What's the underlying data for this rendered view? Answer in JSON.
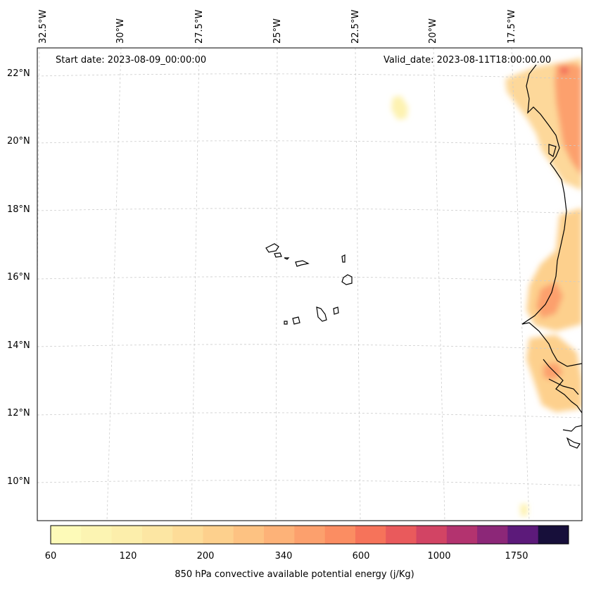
{
  "header": {
    "start_date": "Start date: 2023-08-09_00:00:00",
    "valid_date": "Valid_date: 2023-08-11T18:00:00.00"
  },
  "longitude_labels": [
    "32.5°W",
    "30°W",
    "27.5°W",
    "25°W",
    "22.5°W",
    "20°W",
    "17.5°W"
  ],
  "latitude_labels": [
    "22°N",
    "20°N",
    "18°N",
    "16°N",
    "14°N",
    "12°N",
    "10°N"
  ],
  "colorbar": {
    "tick_labels": [
      "60",
      "120",
      "200",
      "340",
      "600",
      "1000",
      "1750"
    ],
    "label": "850 hPa convective available potential energy (j/Kg)",
    "colors": [
      "#fdfab8",
      "#fcf4b2",
      "#fceeab",
      "#fce6a3",
      "#fddc98",
      "#fdd08d",
      "#fdc282",
      "#fdb278",
      "#fca06d",
      "#fb8d62",
      "#f6735a",
      "#e95a5c",
      "#d24464",
      "#b3336f",
      "#8c2778",
      "#5c1a7a",
      "#170f3a"
    ]
  },
  "colors": {
    "coastline": "#000000",
    "gridline": "#cccccc"
  }
}
